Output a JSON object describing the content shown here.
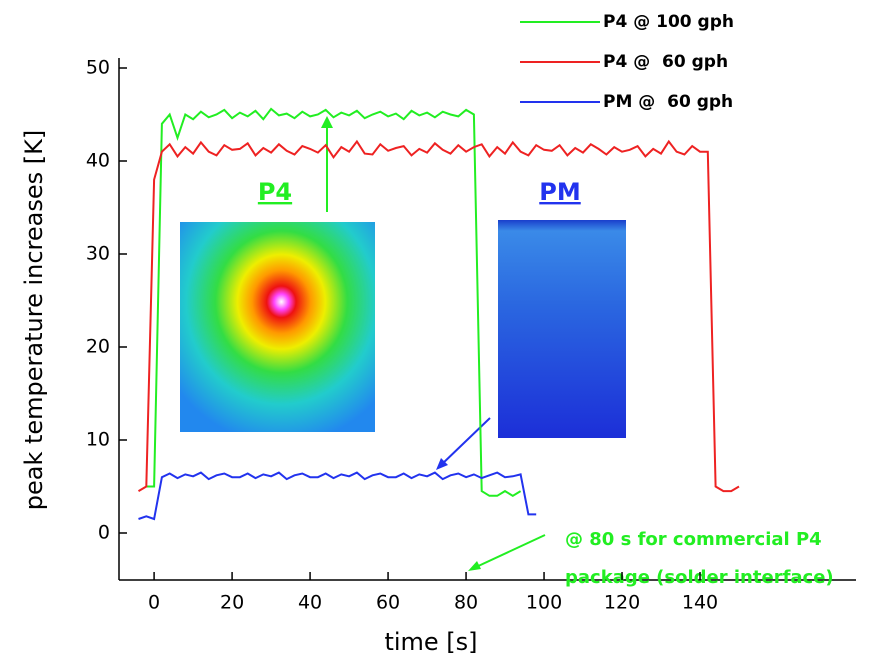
{
  "chart_data": {
    "type": "line",
    "x_label": "time [s]",
    "y_label": "peak temperature increases [K]",
    "x": [
      -4,
      -2,
      0,
      2,
      4,
      6,
      8,
      10,
      12,
      14,
      16,
      18,
      20,
      22,
      24,
      26,
      28,
      30,
      32,
      34,
      36,
      38,
      40,
      42,
      44,
      46,
      48,
      50,
      52,
      54,
      56,
      58,
      60,
      62,
      64,
      66,
      68,
      70,
      72,
      74,
      76,
      78,
      80,
      82,
      84,
      86,
      88,
      90,
      92,
      94,
      96,
      98,
      100,
      102,
      104,
      106,
      108,
      110,
      112,
      114,
      116,
      118,
      120,
      122,
      124,
      126,
      128,
      130,
      132,
      134,
      136,
      138,
      140,
      142,
      144,
      146,
      148,
      150
    ],
    "series": [
      {
        "name": "P4 @ 100 gph",
        "color": "#22ee22",
        "values": [
          null,
          5,
          5,
          44,
          45,
          42.5,
          45,
          44.5,
          45.3,
          44.7,
          45,
          45.5,
          44.6,
          45.2,
          44.8,
          45.4,
          44.5,
          45.6,
          44.9,
          45.1,
          44.6,
          45.3,
          44.8,
          45,
          45.5,
          44.7,
          45.2,
          44.9,
          45.4,
          44.6,
          45,
          45.3,
          44.8,
          45.1,
          44.5,
          45.4,
          44.9,
          45.2,
          44.7,
          45.3,
          45,
          44.8,
          45.5,
          45,
          4.5,
          4,
          4,
          4.5,
          4,
          4.5,
          null,
          null,
          null,
          null,
          null,
          null,
          null,
          null,
          null,
          null,
          null,
          null,
          null,
          null,
          null,
          null,
          null,
          null,
          null,
          null,
          null,
          null,
          null,
          null,
          null,
          null,
          null,
          null
        ]
      },
      {
        "name": "P4 @  60 gph",
        "color": "#ee2222",
        "values": [
          4.5,
          5,
          38,
          41,
          41.8,
          40.5,
          41.5,
          40.8,
          42,
          41,
          40.6,
          41.7,
          41.2,
          41.3,
          41.9,
          40.6,
          41.4,
          40.9,
          41.8,
          41.1,
          40.7,
          41.6,
          41.3,
          40.9,
          41.7,
          40.4,
          41.5,
          41,
          42.1,
          40.8,
          40.7,
          41.8,
          41.1,
          41.4,
          41.6,
          40.6,
          41.3,
          40.9,
          41.9,
          41.2,
          40.8,
          41.7,
          41,
          41.5,
          41.8,
          40.5,
          41.5,
          40.8,
          42,
          41,
          40.6,
          41.7,
          41.2,
          41.1,
          41.7,
          40.6,
          41.4,
          40.9,
          41.8,
          41.3,
          40.7,
          41.5,
          41,
          41.2,
          41.6,
          40.5,
          41.3,
          40.8,
          42.1,
          41,
          40.7,
          41.6,
          41,
          41,
          5,
          4.5,
          4.5,
          5
        ]
      },
      {
        "name": "PM @  60 gph",
        "color": "#2233ee",
        "values": [
          1.5,
          1.8,
          1.5,
          6,
          6.4,
          5.9,
          6.3,
          6.1,
          6.5,
          5.8,
          6.2,
          6.4,
          6,
          6,
          6.4,
          5.9,
          6.3,
          6.1,
          6.5,
          5.8,
          6.2,
          6.4,
          6,
          6,
          6.4,
          5.9,
          6.3,
          6.1,
          6.5,
          5.8,
          6.2,
          6.4,
          6,
          6,
          6.4,
          5.9,
          6.3,
          6.1,
          6.5,
          5.8,
          6.2,
          6.4,
          6,
          6.3,
          5.9,
          6.2,
          6.5,
          6,
          6.1,
          6.3,
          2,
          2,
          null,
          null,
          null,
          null,
          null,
          null,
          null,
          null,
          null,
          null,
          null,
          null,
          null,
          null,
          null,
          null,
          null,
          null,
          null,
          null,
          null,
          null,
          null,
          null,
          null,
          null
        ]
      }
    ],
    "xlim": [
      -9,
      180
    ],
    "ylim": [
      -5,
      51
    ],
    "xticks": [
      0,
      20,
      40,
      60,
      80,
      100,
      120,
      140
    ],
    "yticks": [
      0,
      10,
      20,
      30,
      40,
      50
    ],
    "legend": "upper right",
    "annotations": {
      "p4_image_label": "P4",
      "pm_image_label": "PM",
      "note_line1": "@ 80 s for commercial P4",
      "note_line2": "package (solder interface)"
    }
  }
}
